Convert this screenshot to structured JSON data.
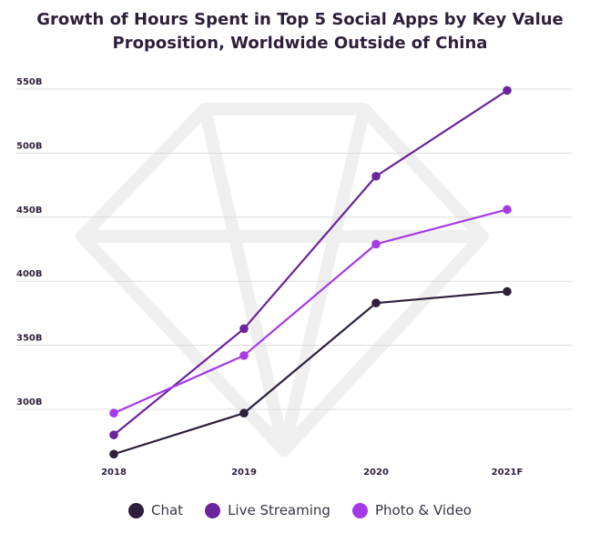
{
  "chart_data": {
    "type": "line",
    "title": [
      "Growth of Hours Spent in Top 5 Social Apps by Key Value",
      "Proposition, Worldwide Outside of China"
    ],
    "categories": [
      "2018",
      "2019",
      "2020",
      "2021F"
    ],
    "y_ticks": [
      300,
      350,
      400,
      450,
      500,
      550
    ],
    "y_tick_labels": [
      "300B",
      "350B",
      "400B",
      "450B",
      "500B",
      "550B"
    ],
    "ylim": [
      268,
      555
    ],
    "grid": true,
    "legend_position": "bottom",
    "series": [
      {
        "name": "Chat",
        "color": "#2e1f3a",
        "values": [
          265,
          297,
          383,
          392
        ]
      },
      {
        "name": "Live Streaming",
        "color": "#6b249b",
        "values": [
          280,
          363,
          482,
          549
        ]
      },
      {
        "name": "Photo & Video",
        "color": "#a63ae6",
        "values": [
          297,
          342,
          429,
          456
        ]
      }
    ]
  }
}
